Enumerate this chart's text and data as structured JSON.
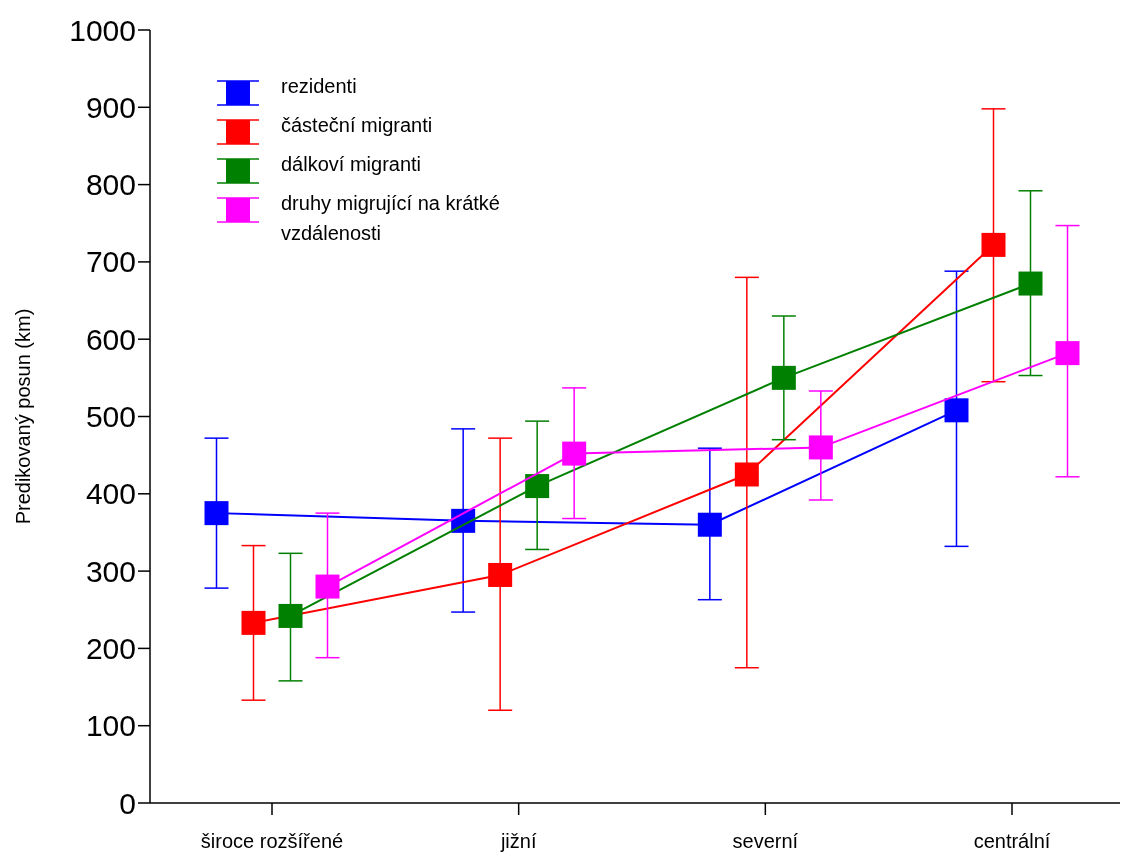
{
  "chart_data": {
    "type": "line",
    "ylabel": "Predikovaný posun (km)",
    "categories": [
      "široce rozšířené",
      "jižní",
      "severní",
      "centrální"
    ],
    "ylim": [
      0,
      1000
    ],
    "yticks": [
      0,
      100,
      200,
      300,
      400,
      500,
      600,
      700,
      800,
      900,
      1000
    ],
    "grid": false,
    "legend": "top left",
    "marker": "square",
    "line_style": "solid",
    "series": [
      {
        "name": "rezidenti",
        "color": "#0000ff",
        "values": [
          375,
          365,
          360,
          508
        ],
        "errors": [
          [
            278,
            472
          ],
          [
            247,
            484
          ],
          [
            263,
            459
          ],
          [
            332,
            688
          ]
        ]
      },
      {
        "name": "částeční migranti",
        "color": "#ff0000",
        "values": [
          233,
          295,
          425,
          722
        ],
        "errors": [
          [
            133,
            333
          ],
          [
            120,
            472
          ],
          [
            175,
            680
          ],
          [
            545,
            898
          ]
        ]
      },
      {
        "name": "dálkoví migranti",
        "color": "#008000",
        "values": [
          242,
          410,
          550,
          672
        ],
        "errors": [
          [
            158,
            323
          ],
          [
            328,
            494
          ],
          [
            470,
            630
          ],
          [
            553,
            792
          ]
        ]
      },
      {
        "name": "druhy migrující na krátké vzdálenosti",
        "color": "#ff00ff",
        "values": [
          280,
          452,
          460,
          582
        ],
        "errors": [
          [
            188,
            375
          ],
          [
            368,
            537
          ],
          [
            392,
            533
          ],
          [
            422,
            747
          ]
        ]
      }
    ]
  }
}
